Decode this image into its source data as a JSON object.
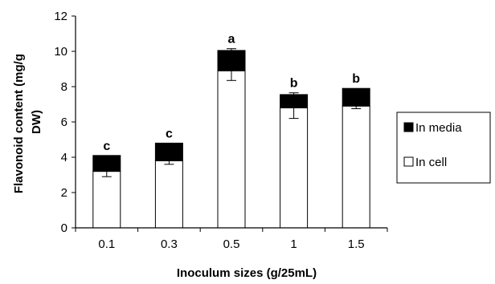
{
  "chart_data": {
    "type": "bar",
    "stacked": true,
    "categories": [
      "0.1",
      "0.3",
      "0.5",
      "1",
      "1.5"
    ],
    "series": [
      {
        "name": "In cell",
        "color": "#ffffff",
        "values": [
          3.2,
          3.8,
          8.9,
          6.8,
          6.9
        ],
        "error": [
          0.3,
          0.2,
          0.55,
          0.6,
          0.15
        ]
      },
      {
        "name": "In media",
        "color": "#000000",
        "values": [
          0.9,
          1.0,
          1.15,
          0.75,
          1.0
        ],
        "error": [
          0.0,
          0.0,
          0.1,
          0.1,
          0.0
        ]
      }
    ],
    "significance": [
      "c",
      "c",
      "a",
      "b",
      "b"
    ],
    "xlabel": "Inoculum sizes (g/25mL)",
    "ylabel": "Flavonoid content (mg/g DW)",
    "ylabel_lines": [
      "Flavonoid content (mg/g",
      "DW)"
    ],
    "ylim": [
      0,
      12
    ],
    "yticks": [
      "0",
      "2",
      "4",
      "6",
      "8",
      "10",
      "12"
    ],
    "legend_position": "right",
    "grid": false
  }
}
